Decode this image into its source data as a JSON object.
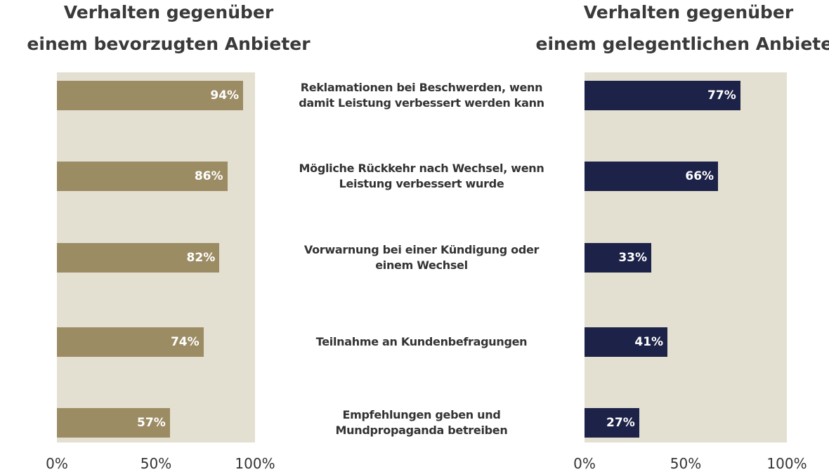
{
  "chart_data": [
    {
      "type": "bar",
      "orientation": "horizontal",
      "title": "Verhalten gegenüber einem bevorzugten Anbieter",
      "title_lines": [
        "Verhalten gegenüber",
        "einem bevorzugten Anbieter"
      ],
      "categories": [
        "Reklamationen bei Beschwerden, wenn damit Leistung verbessert werden kann",
        "Mögliche Rückkehr nach Wechsel, wenn Leistung verbessert wurde",
        "Vorwarnung bei einer Kündigung oder einem Wechsel",
        "Teilnahme an Kundenbefragungen",
        "Empfehlungen geben und Mundpropaganda betreiben"
      ],
      "values": [
        94,
        86,
        82,
        74,
        57
      ],
      "value_labels": [
        "94%",
        "86%",
        "82%",
        "74%",
        "57%"
      ],
      "xlim": [
        0,
        100
      ],
      "ticks": [
        "0%",
        "50%",
        "100%"
      ],
      "bar_color": "#9c8c64",
      "background_color": "#e3e0d2"
    },
    {
      "type": "bar",
      "orientation": "horizontal",
      "title": "Verhalten gegenüber einem gelegentlichen Anbieter",
      "title_lines": [
        "Verhalten gegenüber",
        "einem gelegentlichen Anbieter"
      ],
      "categories": [
        "Reklamationen bei Beschwerden, wenn damit Leistung verbessert werden kann",
        "Mögliche Rückkehr nach Wechsel, wenn Leistung verbessert wurde",
        "Vorwarnung bei einer Kündigung oder einem Wechsel",
        "Teilnahme an Kundenbefragungen",
        "Empfehlungen geben und Mundpropaganda betreiben"
      ],
      "values": [
        77,
        66,
        33,
        41,
        27
      ],
      "value_labels": [
        "77%",
        "66%",
        "33%",
        "41%",
        "27%"
      ],
      "xlim": [
        0,
        100
      ],
      "ticks": [
        "0%",
        "50%",
        "100%"
      ],
      "bar_color": "#1d2248",
      "background_color": "#e3e0d2"
    }
  ],
  "category_labels": [
    [
      "Reklamationen bei Beschwerden, wenn",
      "damit Leistung verbessert werden kann"
    ],
    [
      "Mögliche Rückkehr nach Wechsel, wenn",
      "Leistung verbessert wurde"
    ],
    [
      "Vorwarnung bei einer Kündigung oder",
      "einem Wechsel"
    ],
    [
      "Teilnahme an Kundenbefragungen"
    ],
    [
      "Empfehlungen geben und",
      "Mundpropaganda betreiben"
    ]
  ]
}
